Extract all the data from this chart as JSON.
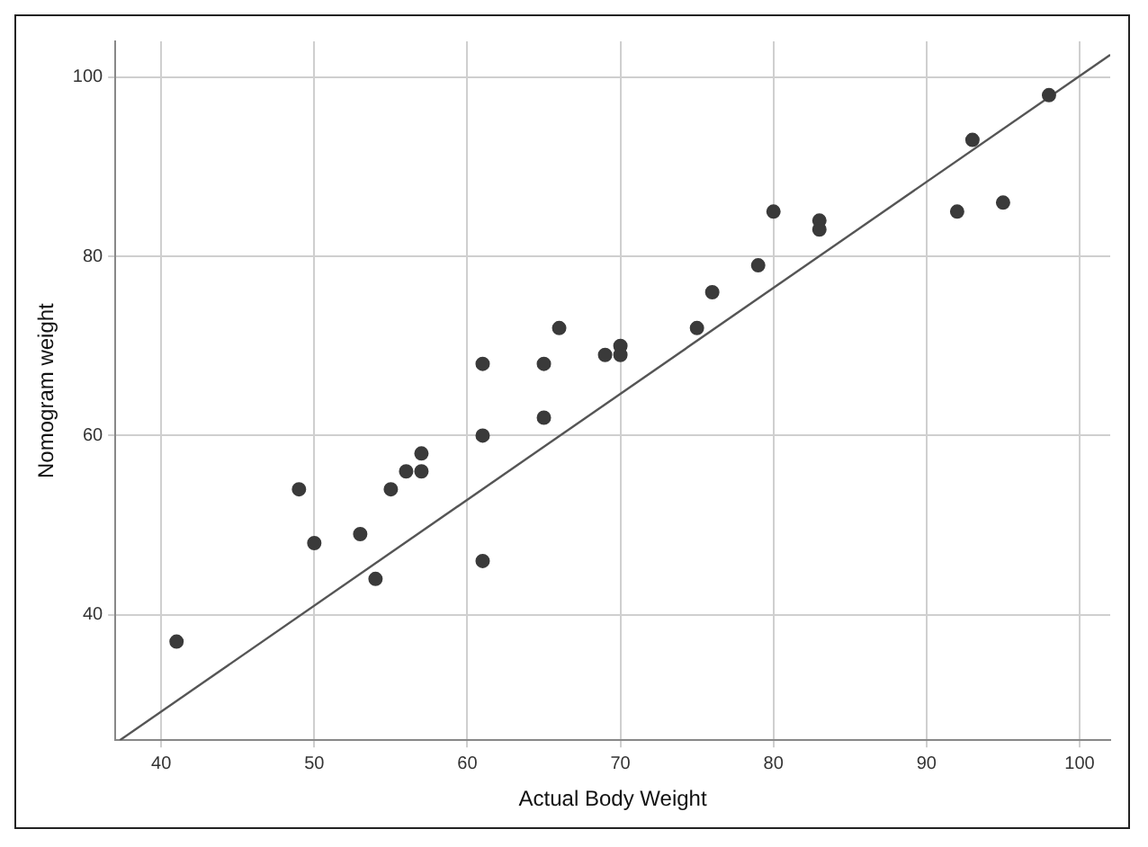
{
  "chart_data": {
    "type": "scatter",
    "xlabel": "Actual Body Weight",
    "ylabel": "Nomogram weight",
    "xlim": [
      37,
      102
    ],
    "ylim": [
      26,
      104
    ],
    "xticks": [
      40,
      50,
      60,
      70,
      80,
      90,
      100
    ],
    "yticks": [
      40,
      60,
      80,
      100
    ],
    "grid": true,
    "marker": "circle",
    "series": [
      {
        "color": "#3a3a3a",
        "x": [
          41,
          49,
          50,
          53,
          54,
          55,
          56,
          57,
          57,
          61,
          61,
          61,
          65,
          65,
          66,
          69,
          70,
          70,
          75,
          76,
          79,
          80,
          83,
          83,
          92,
          93,
          95,
          98
        ],
        "values": [
          37,
          54,
          48,
          49,
          44,
          54,
          56,
          56,
          58,
          68,
          60,
          46,
          68,
          62,
          72,
          69,
          70,
          69,
          72,
          76,
          79,
          85,
          84,
          83,
          85,
          93,
          86,
          98
        ]
      },
      {
        "type": "line",
        "color": "#555555",
        "x": [
          37.3,
          102
        ],
        "values": [
          26,
          102.5
        ],
        "marker": "none",
        "line_style": "solid"
      }
    ]
  }
}
